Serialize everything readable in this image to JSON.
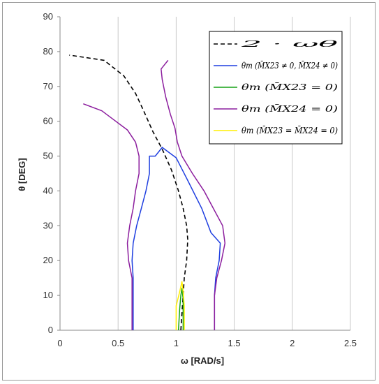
{
  "chart_data": {
    "type": "line",
    "xlabel": "ω [RAD/s]",
    "ylabel": "θ [DEG]",
    "xlim": [
      0,
      2.5
    ],
    "ylim": [
      0,
      90
    ],
    "xticks": [
      "0",
      "0.5",
      "1",
      "1.5",
      "2",
      "2.5"
    ],
    "yticks": [
      "0",
      "10",
      "20",
      "30",
      "40",
      "50",
      "60",
      "70",
      "80",
      "90"
    ],
    "grid": "vertical",
    "legend_position": "top-right",
    "series": [
      {
        "name": "2 · ωθ",
        "color": "#000000",
        "dash": true,
        "segments": [
          [
            [
              1.04,
              0
            ],
            [
              1.05,
              5
            ],
            [
              1.06,
              10
            ],
            [
              1.07,
              15
            ],
            [
              1.09,
              20
            ],
            [
              1.1,
              26
            ],
            [
              1.09,
              30
            ],
            [
              1.06,
              35
            ],
            [
              1.02,
              40
            ],
            [
              0.96,
              46
            ],
            [
              0.88,
              52
            ],
            [
              0.8,
              57
            ],
            [
              0.72,
              63
            ],
            [
              0.65,
              68
            ],
            [
              0.55,
              73
            ],
            [
              0.38,
              77.5
            ],
            [
              0.08,
              79
            ]
          ]
        ]
      },
      {
        "name": "θm (M̄X23 ≠ 0, M̄X24 ≠ 0)",
        "color": "#1f3fe0",
        "dash": false,
        "segments": [
          [
            [
              0.63,
              0
            ],
            [
              0.63,
              15
            ],
            [
              0.62,
              20
            ],
            [
              0.63,
              25
            ],
            [
              0.66,
              30
            ],
            [
              0.7,
              35
            ],
            [
              0.74,
              40
            ],
            [
              0.77,
              45
            ],
            [
              0.77,
              50
            ],
            [
              0.82,
              50
            ],
            [
              0.88,
              52.5
            ],
            [
              1.0,
              49.5
            ],
            [
              1.1,
              43
            ],
            [
              1.22,
              35
            ],
            [
              1.3,
              28
            ],
            [
              1.38,
              25
            ],
            [
              1.37,
              20
            ],
            [
              1.34,
              15
            ],
            [
              1.33,
              10
            ],
            [
              1.33,
              0
            ]
          ]
        ]
      },
      {
        "name": "θm (M̄X23 = 0)",
        "color": "#15a215",
        "dash": false,
        "segments": [
          [
            [
              1.02,
              0
            ],
            [
              1.03,
              6
            ],
            [
              1.04,
              10
            ],
            [
              1.05,
              12
            ],
            [
              1.06,
              9
            ],
            [
              1.06,
              0
            ]
          ]
        ]
      },
      {
        "name": "θm (M̄X24 = 0)",
        "color": "#8c1e9e",
        "dash": false,
        "segments": [
          [
            [
              0.62,
              0
            ],
            [
              0.62,
              15
            ],
            [
              0.59,
              20
            ],
            [
              0.58,
              25
            ],
            [
              0.6,
              30
            ],
            [
              0.63,
              35
            ],
            [
              0.65,
              40
            ],
            [
              0.68,
              45
            ],
            [
              0.68,
              50
            ],
            [
              0.65,
              54
            ],
            [
              0.58,
              57.5
            ],
            [
              0.44,
              61
            ],
            [
              0.36,
              63
            ],
            [
              0.2,
              65
            ]
          ],
          [
            [
              1.33,
              0
            ],
            [
              1.33,
              10
            ],
            [
              1.35,
              15
            ],
            [
              1.39,
              20
            ],
            [
              1.42,
              25
            ],
            [
              1.4,
              30
            ],
            [
              1.32,
              35
            ],
            [
              1.24,
              40
            ],
            [
              1.14,
              45
            ],
            [
              1.05,
              50
            ],
            [
              1.01,
              54
            ],
            [
              0.99,
              58
            ],
            [
              0.95,
              62
            ],
            [
              0.91,
              67
            ],
            [
              0.88,
              72
            ],
            [
              0.87,
              75
            ],
            [
              0.93,
              77.5
            ]
          ]
        ]
      },
      {
        "name": "θm (M̄X23 = M̄X24 = 0)",
        "color": "#ffef00",
        "dash": false,
        "segments": [
          [
            [
              1.0,
              0
            ],
            [
              1.0,
              7
            ],
            [
              1.03,
              11
            ],
            [
              1.05,
              14
            ],
            [
              1.06,
              11
            ],
            [
              1.07,
              7
            ],
            [
              1.07,
              0
            ]
          ]
        ]
      }
    ]
  }
}
